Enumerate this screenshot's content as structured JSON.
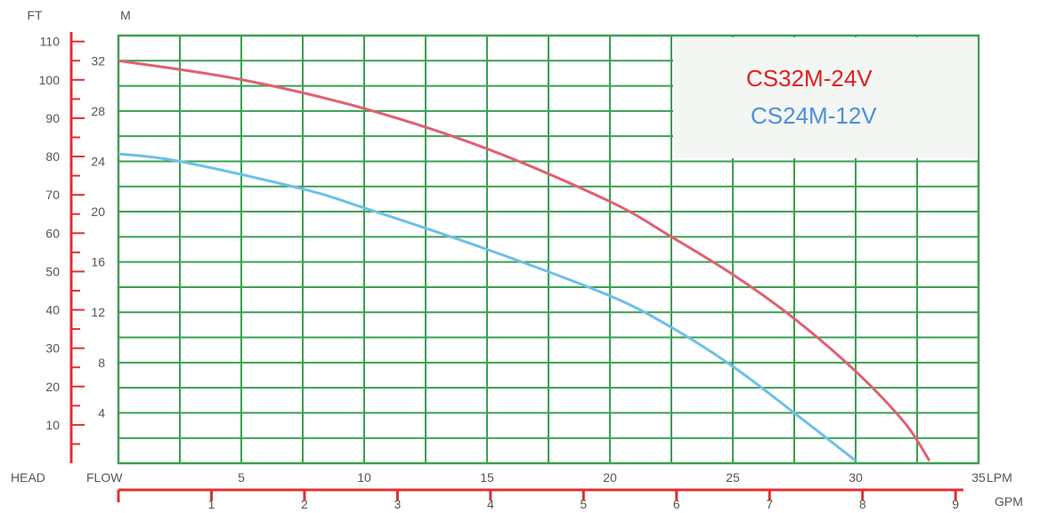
{
  "chart_data": {
    "type": "line",
    "head_label": "HEAD",
    "flow_label": "FLOW",
    "m_axis": {
      "label": "M",
      "ticks": [
        4,
        8,
        12,
        16,
        20,
        24,
        28,
        32
      ],
      "range": [
        0,
        34
      ]
    },
    "ft_axis": {
      "label": "FT",
      "ticks": [
        10,
        20,
        30,
        40,
        50,
        60,
        70,
        80,
        90,
        100,
        110
      ]
    },
    "lpm_axis": {
      "label": "LPM",
      "ticks": [
        5,
        10,
        15,
        20,
        25,
        30,
        35
      ],
      "range": [
        0,
        35
      ]
    },
    "gpm_axis": {
      "label": "GPM",
      "ticks": [
        1,
        2,
        3,
        4,
        5,
        6,
        7,
        8,
        9
      ]
    },
    "grid": true,
    "legend_position": "top-right",
    "series": [
      {
        "name": "CS32M-24V",
        "color": "#e02020",
        "line_color": "#e06070",
        "x": [
          0,
          5,
          10,
          15,
          20,
          22.5,
          25,
          27.5,
          30,
          32,
          33
        ],
        "y": [
          32.0,
          30.5,
          28.2,
          25.0,
          20.8,
          18.0,
          15.0,
          11.5,
          7.3,
          3.2,
          0.2
        ]
      },
      {
        "name": "CS24M-12V",
        "color": "#4a90d9",
        "line_color": "#6cc0e8",
        "x": [
          0,
          2.5,
          7.5,
          10,
          15,
          20,
          22.5,
          25,
          27.5,
          30
        ],
        "y": [
          24.6,
          24.0,
          21.8,
          20.3,
          17.0,
          13.3,
          10.8,
          7.7,
          4.0,
          0.2
        ]
      }
    ]
  }
}
